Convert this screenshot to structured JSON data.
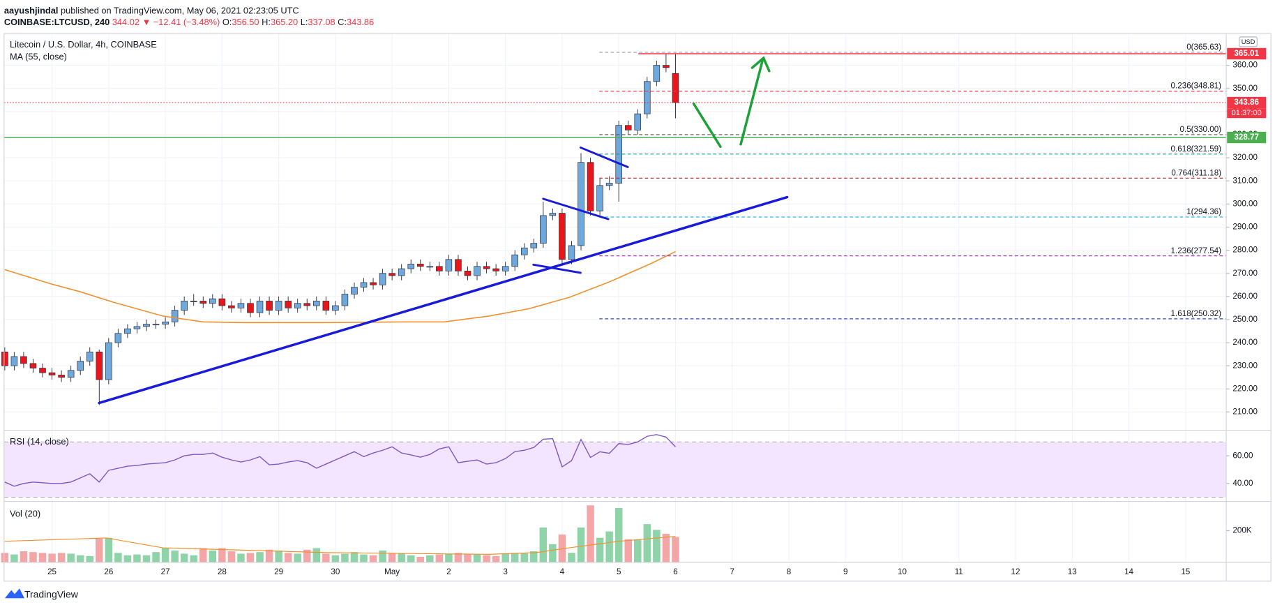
{
  "header": {
    "author": "aayushjindal",
    "published": "published on TradingView.com, May 06, 2021 02:23:05 UTC",
    "symbol": "COINBASE:LTCUSD, 240",
    "last": "344.02",
    "change": "▼ −12.41 (−3.48%)",
    "ohlc": [
      {
        "label": "O:",
        "value": "356.50"
      },
      {
        "label": "H:",
        "value": "365.20"
      },
      {
        "label": "L:",
        "value": "337.08"
      },
      {
        "label": "C:",
        "value": "343.86"
      }
    ]
  },
  "footer": {
    "brand": "TradingView"
  },
  "chart_data": [
    {
      "type": "candlestick",
      "title": "Litecoin / U.S. Dollar, 4h, COINBASE",
      "currency": "USD",
      "x": [
        580,
        584,
        588,
        592,
        596,
        600,
        604,
        608,
        612,
        616,
        620,
        624,
        628,
        632,
        636,
        640,
        644,
        648,
        652,
        656,
        660,
        664,
        668,
        672,
        676,
        680,
        684,
        688,
        692,
        696,
        700,
        704,
        708,
        712,
        716,
        720,
        724,
        728,
        732,
        736,
        740,
        744,
        748,
        752,
        756,
        760,
        764,
        768,
        772,
        776,
        780,
        784,
        788,
        792,
        796,
        800,
        804,
        808,
        812,
        816,
        820,
        824,
        828,
        832,
        836,
        840,
        844,
        848,
        852,
        856,
        860,
        864
      ],
      "open": [
        236,
        230,
        234,
        231,
        229,
        227,
        226,
        225,
        228,
        232,
        236,
        224,
        240,
        244,
        246,
        247,
        248,
        248,
        249,
        254,
        258,
        258,
        257,
        259,
        256,
        255,
        257,
        253,
        258,
        254,
        258,
        255,
        257,
        256,
        258,
        254,
        256,
        261,
        264,
        266,
        265,
        270,
        269,
        272,
        274,
        273,
        273,
        271,
        276,
        271,
        269,
        273,
        272,
        271,
        273,
        278,
        281,
        283,
        295,
        296,
        276,
        282,
        318,
        297,
        308,
        309,
        334,
        332,
        339,
        353,
        360,
        356.5
      ],
      "high": [
        238,
        236,
        236,
        233,
        231,
        229,
        228,
        230,
        234,
        238,
        237,
        242,
        246,
        248,
        249,
        250,
        250,
        251,
        256,
        260,
        261,
        260,
        261,
        261,
        258,
        259,
        259,
        260,
        260,
        260,
        260,
        259,
        259,
        260,
        260,
        258,
        263,
        266,
        268,
        268,
        272,
        272,
        274,
        276,
        276,
        275,
        275,
        278,
        278,
        273,
        275,
        275,
        274,
        275,
        280,
        283,
        285,
        301,
        298,
        298,
        284,
        322,
        320,
        311,
        312,
        336,
        336,
        341,
        355,
        362,
        365,
        365.2
      ],
      "low": [
        228,
        228,
        229,
        227,
        225,
        224,
        223,
        223,
        226,
        230,
        213,
        222,
        238,
        242,
        244,
        245,
        246,
        246,
        247,
        252,
        256,
        255,
        255,
        254,
        253,
        253,
        251,
        251,
        252,
        252,
        253,
        253,
        254,
        254,
        252,
        252,
        254,
        259,
        262,
        263,
        263,
        267,
        267,
        270,
        271,
        271,
        269,
        269,
        269,
        267,
        267,
        270,
        269,
        269,
        271,
        276,
        279,
        281,
        293,
        274,
        274,
        280,
        295,
        295,
        306,
        301,
        330,
        330,
        337,
        351,
        357,
        337.08
      ],
      "close": [
        230,
        234,
        231,
        229,
        227,
        226,
        225,
        228,
        232,
        236,
        224,
        240,
        244,
        246,
        247,
        248,
        248,
        249,
        254,
        258,
        258,
        257,
        259,
        256,
        255,
        257,
        253,
        258,
        254,
        258,
        255,
        257,
        256,
        258,
        254,
        256,
        261,
        264,
        266,
        265,
        270,
        269,
        272,
        274,
        273,
        273,
        271,
        276,
        271,
        269,
        273,
        272,
        271,
        273,
        278,
        281,
        283,
        295,
        296,
        276,
        282,
        318,
        297,
        308,
        309,
        334,
        332,
        339,
        353,
        360,
        359,
        343.86
      ],
      "up_color": "#6fa8dc",
      "down_color": "#e8151b",
      "xlim": [
        579.7,
        1097.2
      ],
      "xticks": [
        {
          "value": 600,
          "label": "25"
        },
        {
          "value": 624,
          "label": "26"
        },
        {
          "value": 648,
          "label": "27"
        },
        {
          "value": 672,
          "label": "28"
        },
        {
          "value": 696,
          "label": "29"
        },
        {
          "value": 720,
          "label": "30"
        },
        {
          "value": 744,
          "label": "May"
        },
        {
          "value": 768,
          "label": "2"
        },
        {
          "value": 792,
          "label": "3"
        },
        {
          "value": 816,
          "label": "4"
        },
        {
          "value": 840,
          "label": "5"
        },
        {
          "value": 864,
          "label": "6"
        },
        {
          "value": 888,
          "label": "7"
        },
        {
          "value": 912,
          "label": "8"
        },
        {
          "value": 936,
          "label": "9"
        },
        {
          "value": 960,
          "label": "10"
        },
        {
          "value": 984,
          "label": "11"
        },
        {
          "value": 1008,
          "label": "12"
        },
        {
          "value": 1032,
          "label": "13"
        },
        {
          "value": 1056,
          "label": "14"
        },
        {
          "value": 1080,
          "label": "15"
        }
      ],
      "ylim": [
        202.3,
        373.7
      ],
      "yticks": [
        {
          "value": 210,
          "label": "210.00"
        },
        {
          "value": 220,
          "label": "220.00"
        },
        {
          "value": 230,
          "label": "230.00"
        },
        {
          "value": 240,
          "label": "240.00"
        },
        {
          "value": 250,
          "label": "250.00"
        },
        {
          "value": 260,
          "label": "260.00"
        },
        {
          "value": 270,
          "label": "270.00"
        },
        {
          "value": 280,
          "label": "280.00"
        },
        {
          "value": 290,
          "label": "290.00"
        },
        {
          "value": 300,
          "label": "300.00"
        },
        {
          "value": 310,
          "label": "310.00"
        },
        {
          "value": 320,
          "label": "320.00"
        },
        {
          "value": 330,
          "label": "330.00"
        },
        {
          "value": 340,
          "label": "340.00"
        },
        {
          "value": 350,
          "label": "350.00"
        },
        {
          "value": 360,
          "label": "360.00"
        }
      ],
      "grid": true,
      "series": [
        {
          "name": "MA (55, close)",
          "color": "#f0902e",
          "x": [
            580,
            599,
            612,
            626,
            647,
            664,
            681,
            716,
            750,
            766,
            785,
            802,
            819,
            836,
            854,
            864
          ],
          "values": [
            271.6,
            265.6,
            262,
            257.5,
            251.5,
            249,
            248.7,
            248.7,
            249,
            249,
            251.5,
            254.7,
            259.6,
            266.3,
            274.4,
            279.4
          ]
        }
      ],
      "fib_levels": [
        {
          "label": "0(365.63)",
          "value": 365.63,
          "color": "#9598a1"
        },
        {
          "label": "0.236(348.81)",
          "value": 348.81,
          "color": "#f23645"
        },
        {
          "label": "0.5(330.00)",
          "value": 330,
          "color": "#555555"
        },
        {
          "label": "0.618(321.59)",
          "value": 321.59,
          "color": "#089981"
        },
        {
          "label": "0.764(311.18)",
          "value": 311.18,
          "color": "#b22833"
        },
        {
          "label": "1(294.36)",
          "value": 294.36,
          "color": "#29b6f6"
        },
        {
          "label": "1.236(277.54)",
          "value": 277.54,
          "color": "#9c27b0"
        },
        {
          "label": "1.618(250.32)",
          "value": 250.32,
          "color": "#3f51b5"
        }
      ],
      "price_lines": [
        {
          "value": 365.01,
          "color": "#f23645",
          "style": "solid"
        },
        {
          "value": 343.86,
          "color": "#f23645",
          "style": "dotted"
        },
        {
          "value": 328.77,
          "color": "#4caf50",
          "style": "solid"
        }
      ],
      "countdown": "01:37:00"
    },
    {
      "type": "line",
      "title": "RSI (14, close)",
      "color": "#7e57c2",
      "values": [
        41,
        38,
        40,
        41,
        40.5,
        40,
        40,
        41,
        44,
        47,
        41,
        49.5,
        51,
        52.5,
        53,
        54,
        54.5,
        55,
        57,
        60,
        61,
        61,
        62,
        59,
        57,
        55.5,
        57,
        59.4,
        53.5,
        54,
        55.5,
        56.5,
        55,
        51,
        54,
        57,
        60,
        63,
        59.4,
        62,
        64,
        66.5,
        62,
        60.6,
        59,
        61,
        65,
        66.5,
        55,
        56,
        57,
        54,
        55,
        58,
        63,
        64,
        66,
        72,
        72.4,
        52,
        56.5,
        71.8,
        58.8,
        62.9,
        61.8,
        68.8,
        68.2,
        70,
        74.1,
        75.3,
        73.5,
        66.5
      ],
      "ylim": [
        27.6,
        78.2
      ],
      "yticks": [
        {
          "value": 40,
          "label": "40.00"
        },
        {
          "value": 60,
          "label": "60.00"
        }
      ],
      "bands": [
        30,
        70
      ],
      "band_color": "#f3e5ff"
    },
    {
      "type": "bar",
      "title": "Vol (20)",
      "values": [
        60000,
        50000,
        70000,
        65000,
        60000,
        55000,
        60000,
        55000,
        45000,
        40000,
        150000,
        155000,
        60000,
        45000,
        50000,
        45000,
        65000,
        90000,
        75000,
        55000,
        45000,
        90000,
        75000,
        90000,
        70000,
        55000,
        60000,
        65000,
        80000,
        75000,
        60000,
        55000,
        80000,
        90000,
        55000,
        45000,
        55000,
        65000,
        50000,
        45000,
        75000,
        60000,
        55000,
        45000,
        35000,
        45000,
        50000,
        55000,
        60000,
        55000,
        50000,
        45000,
        40000,
        55000,
        60000,
        60000,
        70000,
        220000,
        115000,
        175000,
        60000,
        220000,
        359000,
        155000,
        195000,
        343000,
        145000,
        145000,
        241000,
        205000,
        180000,
        160000
      ],
      "up_color": "#8fd3a8",
      "down_color": "#f4a5a5",
      "ylim": [
        0,
        379000
      ],
      "yticks": [
        {
          "value": 200000,
          "label": "200K"
        }
      ],
      "ma": {
        "color": "#f0902e",
        "x": [
          580,
          623,
          647,
          716,
          785,
          805,
          819,
          840,
          864
        ],
        "values": [
          133000,
          154000,
          92000,
          62000,
          51000,
          62000,
          92000,
          133000,
          164000
        ]
      }
    }
  ]
}
